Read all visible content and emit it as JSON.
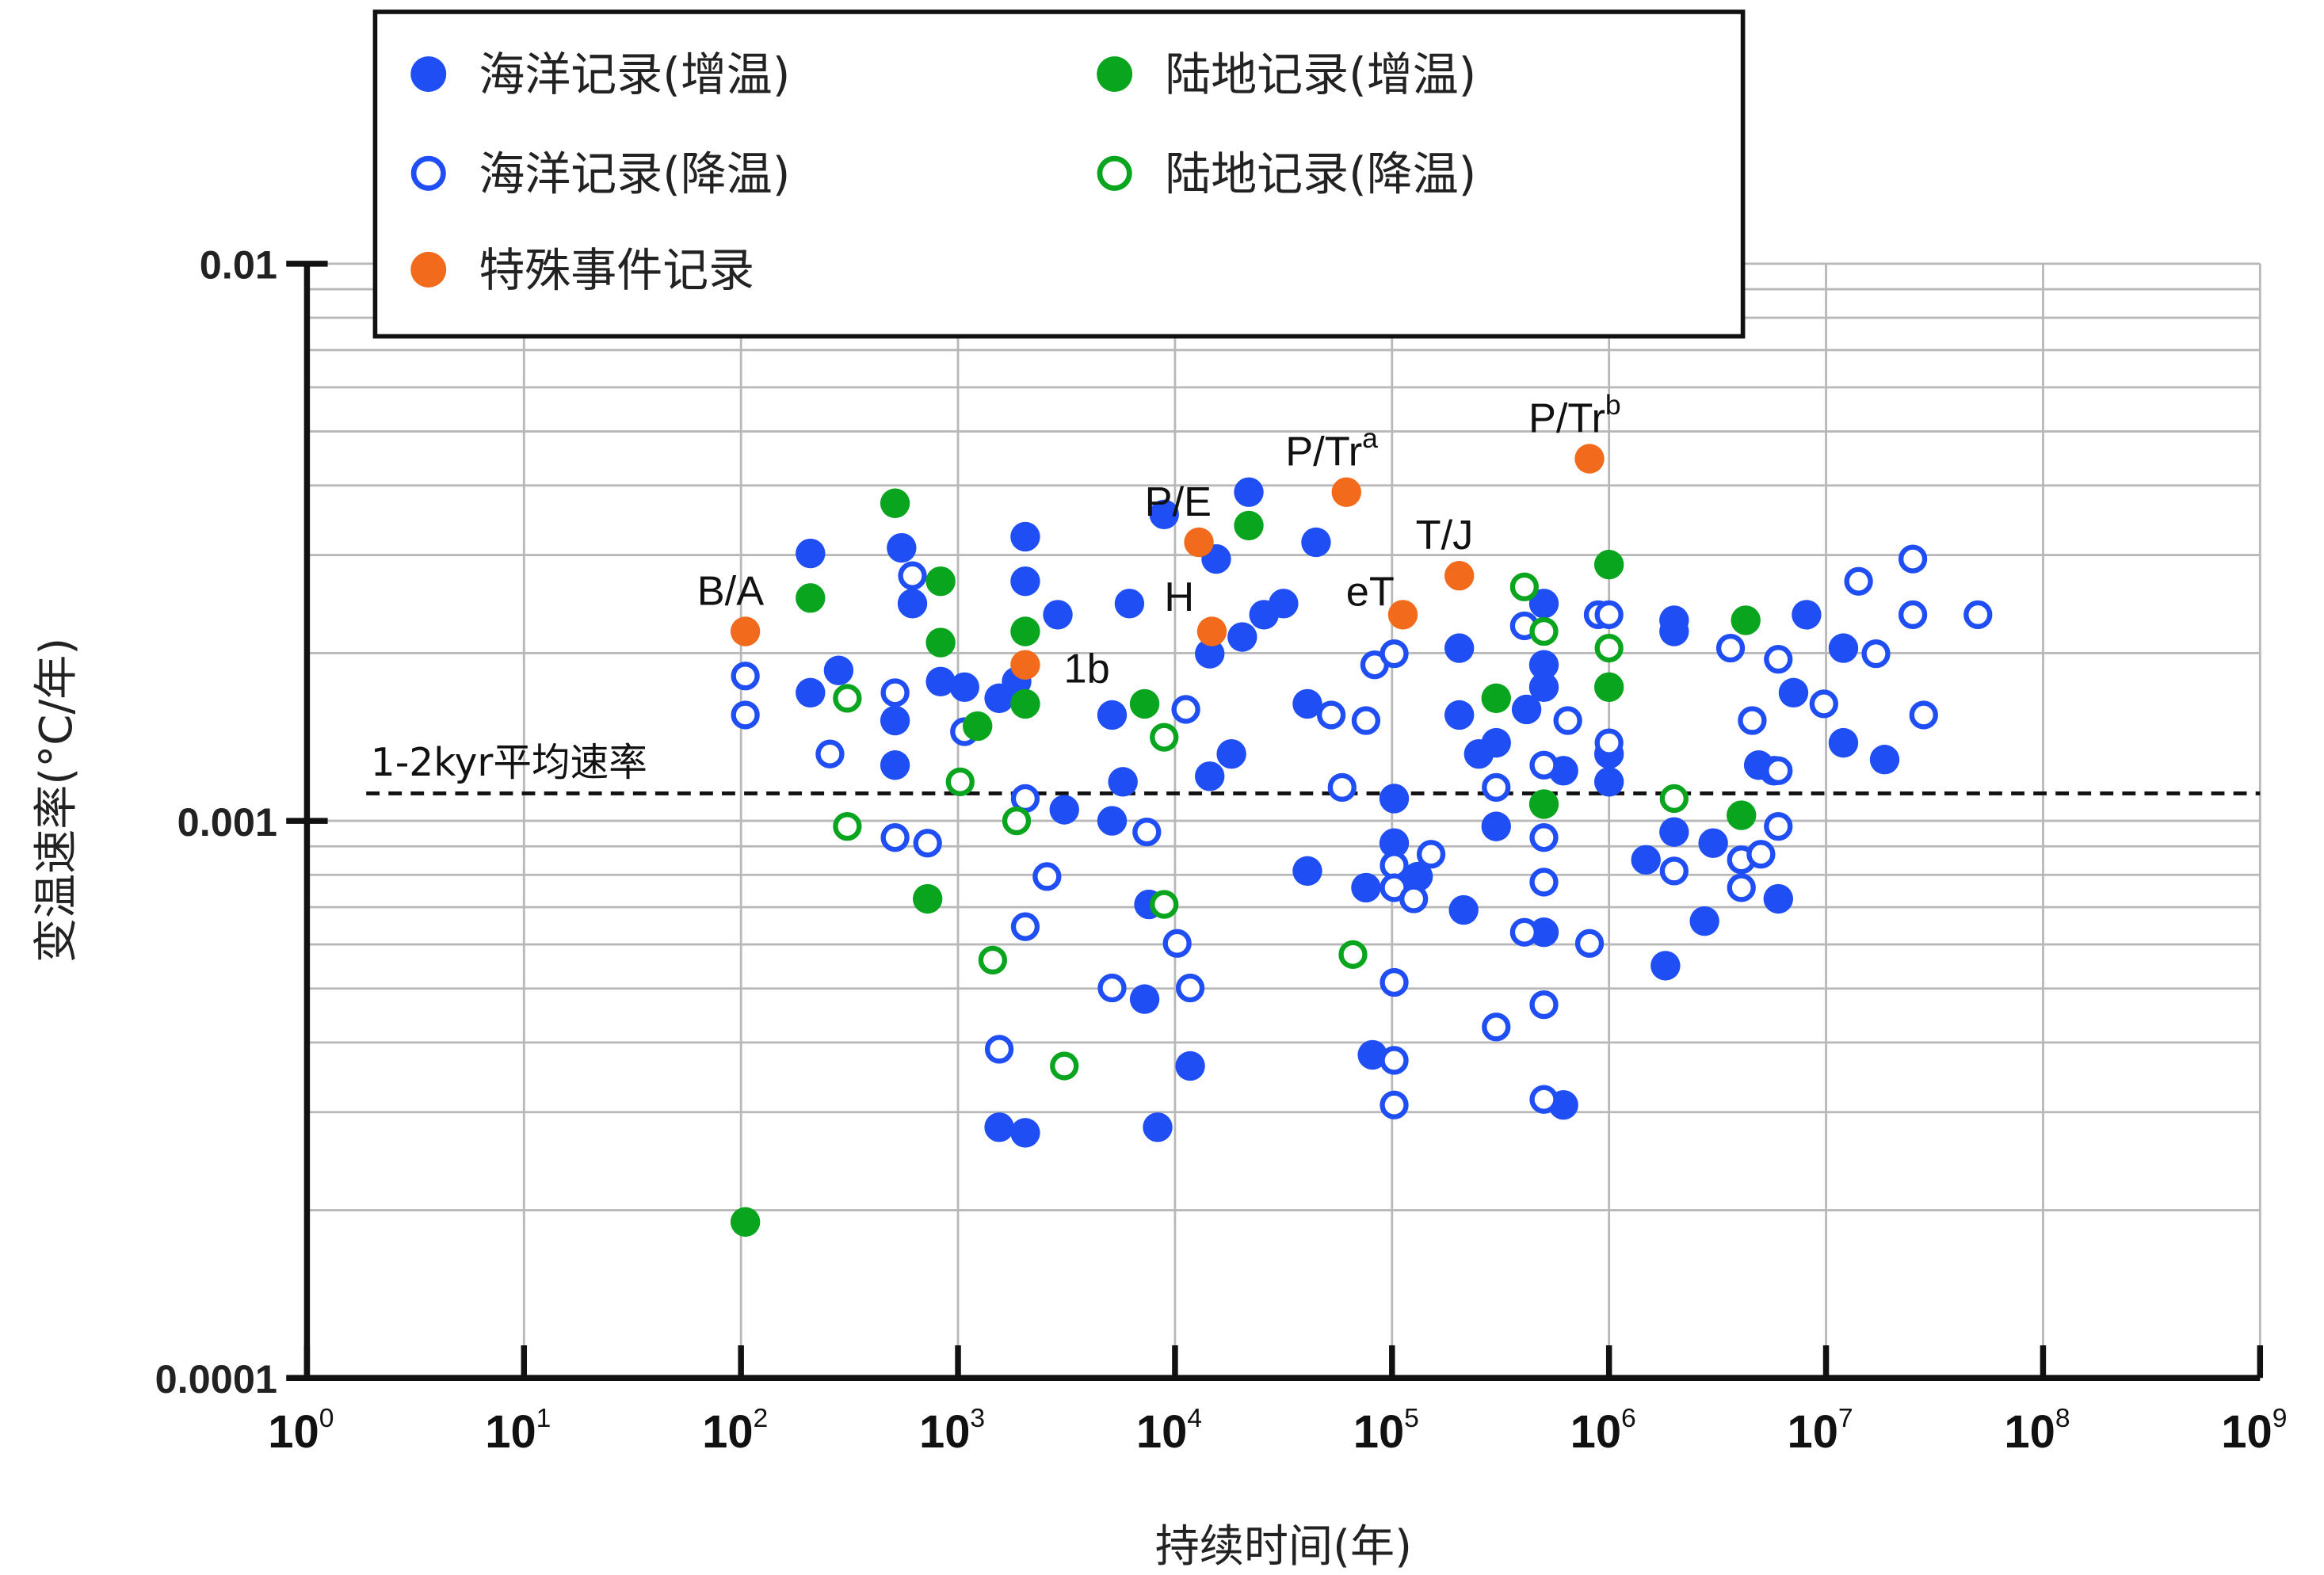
{
  "chart_data": {
    "type": "scatter",
    "xscale": "log",
    "yscale": "log",
    "xlabel": "持续时间(年)",
    "ylabel": "变温速率(°C/年)",
    "xlim_log10": [
      0,
      9
    ],
    "ylim_log10": [
      -4,
      -2
    ],
    "x_ticks": [
      {
        "base": "10",
        "exp": "0"
      },
      {
        "base": "10",
        "exp": "1"
      },
      {
        "base": "10",
        "exp": "2"
      },
      {
        "base": "10",
        "exp": "3"
      },
      {
        "base": "10",
        "exp": "4"
      },
      {
        "base": "10",
        "exp": "5"
      },
      {
        "base": "10",
        "exp": "6"
      },
      {
        "base": "10",
        "exp": "7"
      },
      {
        "base": "10",
        "exp": "8"
      },
      {
        "base": "10",
        "exp": "9"
      }
    ],
    "y_ticks": [
      {
        "label": "0.01",
        "log10": -2
      },
      {
        "label": "0.001",
        "log10": -3
      },
      {
        "label": "0.0001",
        "log10": -4
      }
    ],
    "grid": true,
    "reference_line": {
      "label": "1-2kyr平均速率",
      "value": 0.00112,
      "style": "dashed"
    },
    "legend": {
      "placement": "top-left",
      "entries": [
        {
          "label": "海洋记录(增温)",
          "series": "ocean_warming"
        },
        {
          "label": "陆地记录(增温)",
          "series": "land_warming"
        },
        {
          "label": "海洋记录(降温)",
          "series": "ocean_cooling"
        },
        {
          "label": "陆地记录(降温)",
          "series": "land_cooling"
        },
        {
          "label": "特殊事件记录",
          "series": "special"
        }
      ]
    },
    "point_format": "[log10(duration, years), log10(rate, °C/yr)]",
    "series": [
      {
        "id": "ocean_warming",
        "name": "海洋记录(增温)",
        "color": "#1f4ef5",
        "filled": true,
        "points": [
          [
            2.32,
            -2.52
          ],
          [
            2.32,
            -2.77
          ],
          [
            2.45,
            -2.73
          ],
          [
            2.71,
            -2.82
          ],
          [
            2.71,
            -2.9
          ],
          [
            2.74,
            -2.51
          ],
          [
            2.79,
            -2.61
          ],
          [
            2.92,
            -2.75
          ],
          [
            3.03,
            -2.76
          ],
          [
            3.19,
            -2.78
          ],
          [
            3.31,
            -2.49
          ],
          [
            3.31,
            -2.57
          ],
          [
            3.27,
            -2.75
          ],
          [
            3.46,
            -2.63
          ],
          [
            3.49,
            -2.98
          ],
          [
            3.71,
            -2.81
          ],
          [
            3.71,
            -3.0
          ],
          [
            3.76,
            -2.93
          ],
          [
            3.79,
            -2.61
          ],
          [
            3.88,
            -3.15
          ],
          [
            3.86,
            -3.32
          ],
          [
            3.95,
            -2.45
          ],
          [
            4.07,
            -3.44
          ],
          [
            4.16,
            -2.7
          ],
          [
            4.16,
            -2.92
          ],
          [
            4.19,
            -2.53
          ],
          [
            4.26,
            -2.88
          ],
          [
            4.31,
            -2.67
          ],
          [
            4.34,
            -2.41
          ],
          [
            4.41,
            -2.63
          ],
          [
            4.5,
            -2.61
          ],
          [
            3.19,
            -3.55
          ],
          [
            3.31,
            -3.56
          ],
          [
            4.61,
            -2.79
          ],
          [
            4.61,
            -3.09
          ],
          [
            4.65,
            -2.5
          ],
          [
            4.88,
            -3.12
          ],
          [
            4.91,
            -3.42
          ],
          [
            5.01,
            -2.96
          ],
          [
            5.01,
            -3.04
          ],
          [
            5.12,
            -3.1
          ],
          [
            5.31,
            -2.69
          ],
          [
            5.31,
            -2.81
          ],
          [
            5.33,
            -3.16
          ],
          [
            5.4,
            -2.88
          ],
          [
            5.48,
            -2.86
          ],
          [
            5.48,
            -3.01
          ],
          [
            5.62,
            -2.8
          ],
          [
            5.7,
            -2.61
          ],
          [
            5.7,
            -2.72
          ],
          [
            5.7,
            -2.76
          ],
          [
            5.7,
            -3.2
          ],
          [
            5.79,
            -2.91
          ],
          [
            5.79,
            -3.51
          ],
          [
            6.0,
            -2.88
          ],
          [
            6.0,
            -2.93
          ],
          [
            6.17,
            -3.07
          ],
          [
            6.26,
            -3.26
          ],
          [
            6.3,
            -2.64
          ],
          [
            6.3,
            -2.66
          ],
          [
            6.3,
            -3.02
          ],
          [
            6.44,
            -3.18
          ],
          [
            6.48,
            -3.04
          ],
          [
            6.69,
            -2.9
          ],
          [
            6.76,
            -2.91
          ],
          [
            6.78,
            -3.14
          ],
          [
            6.85,
            -2.77
          ],
          [
            6.91,
            -2.63
          ],
          [
            7.08,
            -2.69
          ],
          [
            7.08,
            -2.86
          ],
          [
            7.27,
            -2.89
          ],
          [
            3.92,
            -3.55
          ]
        ]
      },
      {
        "id": "ocean_cooling",
        "name": "海洋记录(降温)",
        "color": "#1f4ef5",
        "filled": false,
        "points": [
          [
            2.02,
            -2.74
          ],
          [
            2.02,
            -2.81
          ],
          [
            2.41,
            -2.88
          ],
          [
            2.71,
            -2.77
          ],
          [
            2.71,
            -3.03
          ],
          [
            2.79,
            -2.56
          ],
          [
            2.86,
            -3.04
          ],
          [
            3.03,
            -2.84
          ],
          [
            3.31,
            -2.96
          ],
          [
            3.31,
            -3.19
          ],
          [
            3.19,
            -3.41
          ],
          [
            3.41,
            -3.1
          ],
          [
            3.87,
            -3.02
          ],
          [
            3.71,
            -3.3
          ],
          [
            4.05,
            -2.8
          ],
          [
            4.01,
            -3.22
          ],
          [
            4.07,
            -3.3
          ],
          [
            4.72,
            -2.81
          ],
          [
            4.77,
            -2.94
          ],
          [
            4.88,
            -2.82
          ],
          [
            4.92,
            -2.72
          ],
          [
            5.01,
            -2.7
          ],
          [
            5.01,
            -3.08
          ],
          [
            5.01,
            -3.12
          ],
          [
            5.01,
            -3.29
          ],
          [
            5.01,
            -3.43
          ],
          [
            5.01,
            -3.51
          ],
          [
            5.1,
            -3.14
          ],
          [
            5.18,
            -3.06
          ],
          [
            5.48,
            -2.94
          ],
          [
            5.48,
            -3.37
          ],
          [
            5.61,
            -2.65
          ],
          [
            5.61,
            -3.2
          ],
          [
            5.7,
            -2.9
          ],
          [
            5.7,
            -3.03
          ],
          [
            5.7,
            -3.11
          ],
          [
            5.7,
            -3.33
          ],
          [
            5.7,
            -3.5
          ],
          [
            5.81,
            -2.82
          ],
          [
            5.91,
            -3.22
          ],
          [
            5.95,
            -2.63
          ],
          [
            6.0,
            -2.63
          ],
          [
            6.0,
            -2.86
          ],
          [
            6.3,
            -3.09
          ],
          [
            6.56,
            -2.69
          ],
          [
            6.61,
            -3.07
          ],
          [
            6.61,
            -3.12
          ],
          [
            6.66,
            -2.82
          ],
          [
            6.7,
            -3.06
          ],
          [
            6.78,
            -2.71
          ],
          [
            6.78,
            -3.01
          ],
          [
            6.78,
            -2.91
          ],
          [
            6.99,
            -2.79
          ],
          [
            7.15,
            -2.57
          ],
          [
            7.23,
            -2.7
          ],
          [
            7.4,
            -2.53
          ],
          [
            7.4,
            -2.63
          ],
          [
            7.45,
            -2.81
          ],
          [
            7.7,
            -2.63
          ]
        ]
      },
      {
        "id": "land_warming",
        "name": "陆地记录(增温)",
        "color": "#0aa51e",
        "filled": true,
        "points": [
          [
            2.02,
            -3.72
          ],
          [
            2.32,
            -2.6
          ],
          [
            2.71,
            -2.43
          ],
          [
            2.92,
            -2.57
          ],
          [
            2.92,
            -2.68
          ],
          [
            2.86,
            -3.14
          ],
          [
            3.09,
            -2.83
          ],
          [
            3.31,
            -2.66
          ],
          [
            3.31,
            -2.79
          ],
          [
            3.86,
            -2.79
          ],
          [
            4.34,
            -2.47
          ],
          [
            5.48,
            -2.78
          ],
          [
            5.7,
            -2.97
          ],
          [
            6.0,
            -2.54
          ],
          [
            6.0,
            -2.76
          ],
          [
            6.61,
            -2.99
          ],
          [
            6.63,
            -2.64
          ]
        ]
      },
      {
        "id": "land_cooling",
        "name": "陆地记录(降温)",
        "color": "#0aa51e",
        "filled": false,
        "points": [
          [
            2.49,
            -2.78
          ],
          [
            2.49,
            -3.01
          ],
          [
            3.01,
            -2.93
          ],
          [
            3.16,
            -3.25
          ],
          [
            3.27,
            -3.0
          ],
          [
            3.49,
            -3.44
          ],
          [
            3.95,
            -2.85
          ],
          [
            3.95,
            -3.15
          ],
          [
            4.82,
            -3.24
          ],
          [
            5.61,
            -2.58
          ],
          [
            5.7,
            -2.66
          ],
          [
            6.0,
            -2.69
          ],
          [
            6.3,
            -2.96
          ]
        ]
      },
      {
        "id": "special",
        "name": "特殊事件记录",
        "color": "#f26a1b",
        "filled": true,
        "points": [
          [
            2.02,
            -2.66
          ],
          [
            3.31,
            -2.72
          ],
          [
            4.11,
            -2.5
          ],
          [
            4.17,
            -2.66
          ],
          [
            4.79,
            -2.41
          ],
          [
            5.05,
            -2.63
          ],
          [
            5.31,
            -2.56
          ],
          [
            5.91,
            -2.35
          ]
        ]
      }
    ],
    "annotations": [
      {
        "text": "B/A",
        "sup": "",
        "at": [
          2.02,
          -2.66
        ]
      },
      {
        "text": "1b",
        "sup": "",
        "at": [
          3.31,
          -2.72
        ]
      },
      {
        "text": "P/E",
        "sup": "",
        "at": [
          4.11,
          -2.5
        ]
      },
      {
        "text": "H",
        "sup": "",
        "at": [
          4.17,
          -2.66
        ]
      },
      {
        "text": "P/Tr",
        "sup": "a",
        "at": [
          4.79,
          -2.41
        ]
      },
      {
        "text": "eT",
        "sup": "",
        "at": [
          5.05,
          -2.63
        ]
      },
      {
        "text": "T/J",
        "sup": "",
        "at": [
          5.31,
          -2.56
        ]
      },
      {
        "text": "P/Tr",
        "sup": "b",
        "at": [
          5.91,
          -2.35
        ]
      }
    ]
  }
}
